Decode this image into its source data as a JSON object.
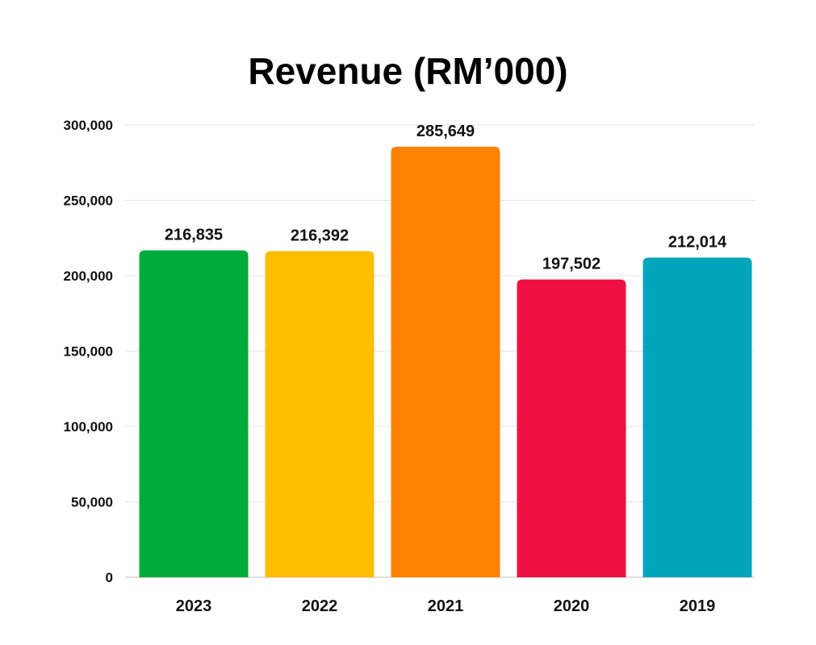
{
  "chart_data": {
    "type": "bar",
    "title": "Revenue (RM’000)",
    "xlabel": "",
    "ylabel": "",
    "categories": [
      "2023",
      "2022",
      "2021",
      "2020",
      "2019"
    ],
    "values": [
      216835,
      216392,
      285649,
      197502,
      212014
    ],
    "value_labels": [
      "216,835",
      "216,392",
      "285,649",
      "197,502",
      "212,014"
    ],
    "colors": [
      "#00ab3c",
      "#ffbe00",
      "#ff8200",
      "#ef1041",
      "#00a5bb"
    ],
    "ylim": [
      0,
      300000
    ],
    "yticks": [
      0,
      50000,
      100000,
      150000,
      200000,
      250000,
      300000
    ],
    "ytick_labels": [
      "0",
      "50,000",
      "100,000",
      "150,000",
      "200,000",
      "250,000",
      "300,000"
    ],
    "grid": true,
    "legend": "none"
  }
}
